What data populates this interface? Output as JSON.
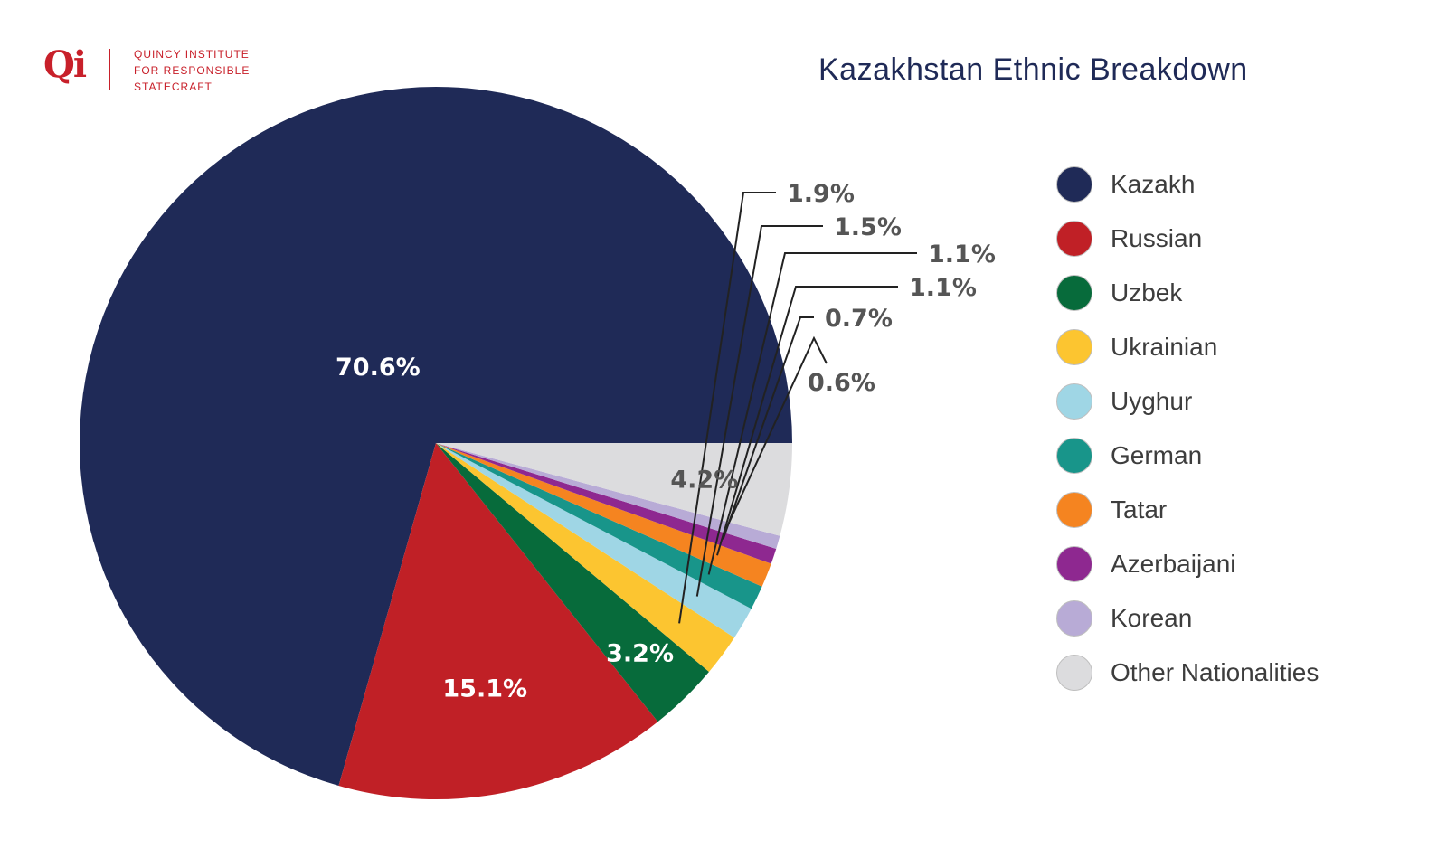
{
  "logo": {
    "mark": "Qi",
    "lines": [
      "QUINCY INSTITUTE",
      "FOR RESPONSIBLE",
      "STATECRAFT"
    ]
  },
  "chart_data": {
    "type": "pie",
    "title": "Kazakhstan Ethnic Breakdown",
    "legend_position": "right",
    "slices": [
      {
        "label": "Kazakh",
        "value": 70.6,
        "value_label": "70.6%",
        "color": "#1f2a57",
        "label_color": "#ffffff"
      },
      {
        "label": "Russian",
        "value": 15.1,
        "value_label": "15.1%",
        "color": "#c02026",
        "label_color": "#ffffff"
      },
      {
        "label": "Uzbek",
        "value": 3.2,
        "value_label": "3.2%",
        "color": "#076b3b",
        "label_color": "#ffffff"
      },
      {
        "label": "Ukrainian",
        "value": 1.9,
        "value_label": "1.9%",
        "color": "#fcc530",
        "label_color": "#555555"
      },
      {
        "label": "Uyghur",
        "value": 1.5,
        "value_label": "1.5%",
        "color": "#9fd6e5",
        "label_color": "#555555"
      },
      {
        "label": "German",
        "value": 1.1,
        "value_label": "1.1%",
        "color": "#18958a",
        "label_color": "#555555"
      },
      {
        "label": "Tatar",
        "value": 1.1,
        "value_label": "1.1%",
        "color": "#f58420",
        "label_color": "#555555"
      },
      {
        "label": "Azerbaijani",
        "value": 0.7,
        "value_label": "0.7%",
        "color": "#8e2890",
        "label_color": "#555555"
      },
      {
        "label": "Korean",
        "value": 0.6,
        "value_label": "0.6%",
        "color": "#b8abd6",
        "label_color": "#555555"
      },
      {
        "label": "Other Nationalities",
        "value": 4.2,
        "value_label": "4.2%",
        "color": "#dcdcde",
        "label_color": "#555555"
      }
    ]
  }
}
